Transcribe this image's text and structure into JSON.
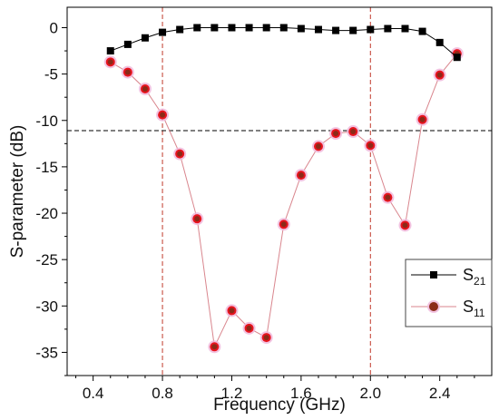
{
  "chart_data": {
    "type": "line",
    "xlabel": "Frequency (GHz)",
    "ylabel": "S-parameter (dB)",
    "xlim": [
      0.25,
      2.7
    ],
    "ylim": [
      -37.5,
      2.2
    ],
    "xticks": [
      0.4,
      0.8,
      1.2,
      1.6,
      2.0,
      2.4
    ],
    "xtick_labels": [
      "0.4",
      "0.8",
      "1.2",
      "1.6",
      "2.0",
      "2.4"
    ],
    "yticks": [
      0,
      -5,
      -10,
      -15,
      -20,
      -25,
      -30,
      -35
    ],
    "ytick_labels": [
      "0",
      "-5",
      "-10",
      "-15",
      "-20",
      "-25",
      "-30",
      "-35"
    ],
    "grid": false,
    "legend_position": "bottom-right",
    "reference_lines": {
      "vertical_x": [
        0.8,
        2.0
      ],
      "horizontal_y": -11.1,
      "vertical_color": "#c0392b",
      "horizontal_color": "#000000"
    },
    "series": [
      {
        "name": "S21",
        "name_base": "S",
        "name_sub": "21",
        "marker": "square",
        "color": "#000000",
        "line_color": "#000000",
        "x": [
          0.5,
          0.6,
          0.7,
          0.8,
          0.9,
          1.0,
          1.1,
          1.2,
          1.3,
          1.4,
          1.5,
          1.6,
          1.7,
          1.8,
          1.9,
          2.0,
          2.1,
          2.2,
          2.3,
          2.4,
          2.5
        ],
        "y": [
          -2.5,
          -1.8,
          -1.1,
          -0.5,
          -0.2,
          0.0,
          0.0,
          0.0,
          0.0,
          0.0,
          0.0,
          -0.1,
          -0.2,
          -0.3,
          -0.3,
          -0.2,
          -0.1,
          -0.1,
          -0.4,
          -1.6,
          -3.2
        ]
      },
      {
        "name": "S11",
        "name_base": "S",
        "name_sub": "11",
        "marker": "circle",
        "color": "#e8141e",
        "inner_color": "#8b2a18",
        "halo_color": "#f0b8dc",
        "line_color": "#d9868e",
        "x": [
          0.5,
          0.6,
          0.7,
          0.8,
          0.9,
          1.0,
          1.1,
          1.2,
          1.3,
          1.4,
          1.5,
          1.6,
          1.7,
          1.8,
          1.9,
          2.0,
          2.1,
          2.2,
          2.3,
          2.4,
          2.5
        ],
        "y": [
          -3.7,
          -4.8,
          -6.6,
          -9.4,
          -13.6,
          -20.6,
          -34.4,
          -30.5,
          -32.4,
          -33.4,
          -21.2,
          -15.9,
          -12.8,
          -11.4,
          -11.2,
          -12.7,
          -18.3,
          -21.3,
          -9.9,
          -5.1,
          -2.8
        ]
      }
    ]
  }
}
